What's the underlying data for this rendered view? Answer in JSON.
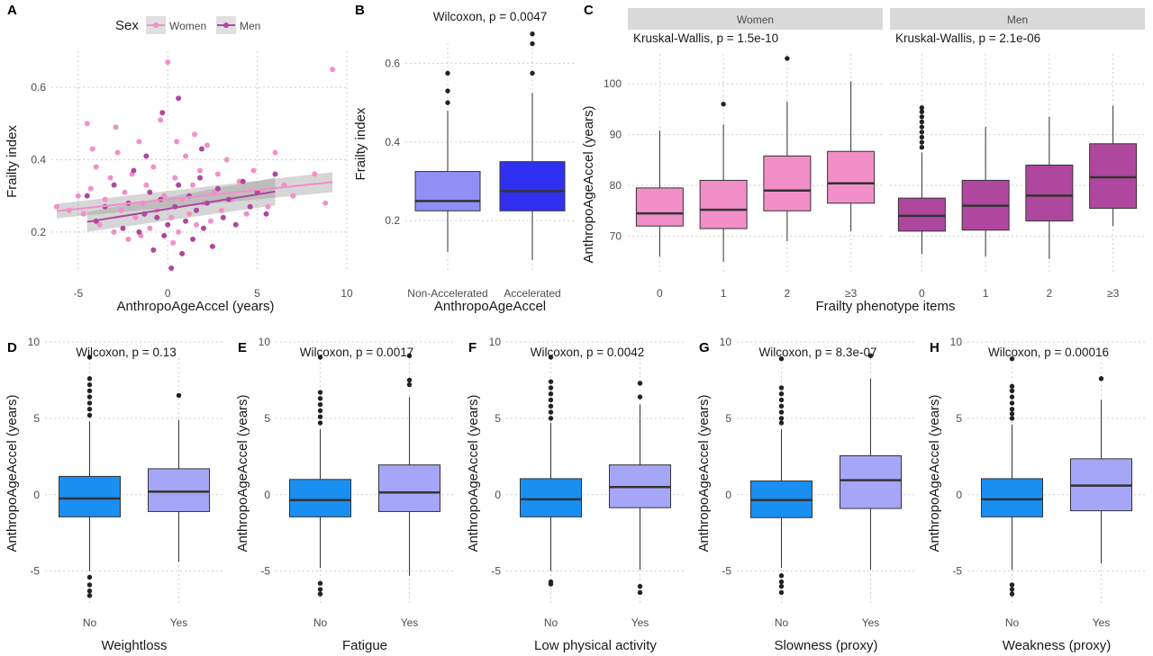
{
  "colors": {
    "women": "#f28fc8",
    "men": "#b0479e",
    "non_accelerated": "#8f8ff5",
    "accelerated": "#3030f0",
    "no": "#1a8ff2",
    "yes": "#a6a6f8",
    "strip_bg": "#d9d9d9"
  },
  "chart_data": [
    {
      "panel": "A",
      "type": "scatter",
      "xlabel": "AnthropoAgeAccel (years)",
      "ylabel": "Frailty index",
      "xlim": [
        -6.5,
        10
      ],
      "ylim": [
        0.09,
        0.7
      ],
      "x_ticks": [
        -5,
        0,
        5,
        10
      ],
      "y_ticks": [
        0.2,
        0.4,
        0.6
      ],
      "x_tick_labels": [
        "-5",
        "0",
        "5",
        "10"
      ],
      "y_tick_labels": [
        "0.2",
        "0.4",
        "0.6"
      ],
      "legend": {
        "title": "Sex",
        "position": "top",
        "items": [
          "Women",
          "Men"
        ]
      },
      "grid": true,
      "series": [
        {
          "name": "Women",
          "color_key": "women",
          "points": [
            [
              -6.2,
              0.27
            ],
            [
              -5.5,
              0.26
            ],
            [
              -5.0,
              0.3
            ],
            [
              -4.7,
              0.25
            ],
            [
              -4.5,
              0.5
            ],
            [
              -4.3,
              0.32
            ],
            [
              -4.0,
              0.38
            ],
            [
              -3.8,
              0.22
            ],
            [
              -3.5,
              0.29
            ],
            [
              -3.2,
              0.35
            ],
            [
              -3.0,
              0.2
            ],
            [
              -2.8,
              0.42
            ],
            [
              -2.6,
              0.26
            ],
            [
              -2.4,
              0.31
            ],
            [
              -2.2,
              0.18
            ],
            [
              -2.0,
              0.36
            ],
            [
              -1.8,
              0.24
            ],
            [
              -1.6,
              0.45
            ],
            [
              -1.4,
              0.28
            ],
            [
              -1.2,
              0.33
            ],
            [
              -1.0,
              0.21
            ],
            [
              -0.8,
              0.38
            ],
            [
              -0.6,
              0.26
            ],
            [
              -0.4,
              0.51
            ],
            [
              -0.2,
              0.3
            ],
            [
              0.0,
              0.67
            ],
            [
              0.2,
              0.24
            ],
            [
              0.4,
              0.35
            ],
            [
              0.6,
              0.2
            ],
            [
              0.8,
              0.29
            ],
            [
              1.0,
              0.41
            ],
            [
              1.2,
              0.25
            ],
            [
              1.4,
              0.33
            ],
            [
              1.6,
              0.22
            ],
            [
              1.8,
              0.37
            ],
            [
              2.0,
              0.28
            ],
            [
              2.2,
              0.44
            ],
            [
              2.4,
              0.23
            ],
            [
              2.6,
              0.31
            ],
            [
              2.8,
              0.36
            ],
            [
              3.0,
              0.26
            ],
            [
              3.3,
              0.4
            ],
            [
              3.6,
              0.29
            ],
            [
              4.0,
              0.34
            ],
            [
              4.4,
              0.25
            ],
            [
              4.8,
              0.37
            ],
            [
              5.2,
              0.31
            ],
            [
              5.6,
              0.27
            ],
            [
              6.0,
              0.42
            ],
            [
              6.5,
              0.33
            ],
            [
              7.0,
              0.3
            ],
            [
              8.2,
              0.36
            ],
            [
              8.8,
              0.28
            ],
            [
              9.2,
              0.65
            ],
            [
              -4.2,
              0.43
            ],
            [
              -2.9,
              0.49
            ],
            [
              0.5,
              0.45
            ],
            [
              1.5,
              0.47
            ],
            [
              -1.5,
              0.19
            ],
            [
              0.3,
              0.17
            ]
          ]
        },
        {
          "name": "Men",
          "color_key": "men",
          "points": [
            [
              -4.5,
              0.3
            ],
            [
              -4.0,
              0.23
            ],
            [
              -3.5,
              0.27
            ],
            [
              -3.0,
              0.33
            ],
            [
              -2.5,
              0.21
            ],
            [
              -2.2,
              0.28
            ],
            [
              -1.9,
              0.37
            ],
            [
              -1.6,
              0.2
            ],
            [
              -1.3,
              0.25
            ],
            [
              -1.0,
              0.31
            ],
            [
              -0.8,
              0.15
            ],
            [
              -0.6,
              0.24
            ],
            [
              -0.4,
              0.29
            ],
            [
              -0.2,
              0.19
            ],
            [
              0.0,
              0.22
            ],
            [
              0.2,
              0.1
            ],
            [
              0.4,
              0.27
            ],
            [
              0.6,
              0.33
            ],
            [
              0.8,
              0.14
            ],
            [
              1.0,
              0.23
            ],
            [
              1.2,
              0.3
            ],
            [
              1.4,
              0.18
            ],
            [
              1.6,
              0.26
            ],
            [
              1.8,
              0.35
            ],
            [
              2.0,
              0.21
            ],
            [
              2.2,
              0.28
            ],
            [
              2.5,
              0.16
            ],
            [
              2.8,
              0.32
            ],
            [
              3.1,
              0.24
            ],
            [
              3.4,
              0.29
            ],
            [
              3.8,
              0.22
            ],
            [
              4.2,
              0.34
            ],
            [
              4.6,
              0.27
            ],
            [
              5.0,
              0.31
            ],
            [
              5.5,
              0.25
            ],
            [
              6.0,
              0.36
            ],
            [
              -0.3,
              0.53
            ],
            [
              0.6,
              0.57
            ],
            [
              -1.2,
              0.41
            ],
            [
              1.9,
              0.43
            ]
          ]
        }
      ],
      "trend_lines": [
        {
          "name": "Women",
          "color_key": "women",
          "x": [
            -6.2,
            9.2
          ],
          "y": [
            0.258,
            0.338
          ]
        },
        {
          "name": "Men",
          "color_key": "men",
          "x": [
            -4.5,
            6.0
          ],
          "y": [
            0.228,
            0.312
          ]
        }
      ]
    },
    {
      "panel": "B",
      "type": "box",
      "annotation": "Wilcoxon, p = 0.0047",
      "xlabel": "AnthropoAgeAccel",
      "ylabel": "Frailty index",
      "ylim": [
        0.07,
        0.72
      ],
      "y_ticks": [
        0.2,
        0.4,
        0.6
      ],
      "y_tick_labels": [
        "0.2",
        "0.4",
        "0.6"
      ],
      "categories": [
        "Non-Accelerated",
        "Accelerated"
      ],
      "color_keys": [
        "non_accelerated",
        "accelerated"
      ],
      "boxes": [
        {
          "min": 0.12,
          "q1": 0.225,
          "median": 0.25,
          "q3": 0.325,
          "max": 0.48,
          "outliers": [
            0.5,
            0.53,
            0.575
          ]
        },
        {
          "min": 0.1,
          "q1": 0.225,
          "median": 0.275,
          "q3": 0.35,
          "max": 0.525,
          "outliers": [
            0.575,
            0.65,
            0.675
          ]
        }
      ]
    },
    {
      "panel": "C",
      "type": "box",
      "annotation_by_facet": [
        "Kruskal-Wallis, p = 1.5e-10",
        "Kruskal-Wallis, p = 2.1e-06"
      ],
      "facets": [
        "Women",
        "Men"
      ],
      "xlabel": "Frailty phenotype items",
      "ylabel": "AnthropoAgeAccel (years)",
      "ylim": [
        63,
        108
      ],
      "y_ticks": [
        70,
        80,
        90,
        100
      ],
      "y_tick_labels": [
        "70",
        "80",
        "90",
        "100"
      ],
      "categories": [
        "0",
        "1",
        "2",
        "≥3"
      ],
      "facet_color_keys": [
        "women",
        "men"
      ],
      "boxes_by_facet": [
        [
          {
            "min": 66,
            "q1": 72,
            "median": 74.5,
            "q3": 79.5,
            "max": 90.8,
            "outliers": []
          },
          {
            "min": 65,
            "q1": 71.5,
            "median": 75.2,
            "q3": 81,
            "max": 92,
            "outliers": [
              96
            ]
          },
          {
            "min": 69,
            "q1": 75,
            "median": 79,
            "q3": 85.8,
            "max": 96.5,
            "outliers": [
              105
            ]
          },
          {
            "min": 71,
            "q1": 76.5,
            "median": 80.4,
            "q3": 86.7,
            "max": 100.5,
            "outliers": []
          }
        ],
        [
          {
            "min": 66.5,
            "q1": 71,
            "median": 74,
            "q3": 77.5,
            "max": 86.5,
            "outliers": [
              87.5,
              88.5,
              89.5,
              90.5,
              91.5,
              92.5,
              93.5,
              94.5,
              95.3
            ]
          },
          {
            "min": 66,
            "q1": 71.2,
            "median": 76,
            "q3": 81,
            "max": 91.5,
            "outliers": []
          },
          {
            "min": 65.5,
            "q1": 73,
            "median": 78,
            "q3": 84,
            "max": 93.5,
            "outliers": []
          },
          {
            "min": 72,
            "q1": 75.5,
            "median": 81.6,
            "q3": 88.2,
            "max": 95.7,
            "outliers": []
          }
        ]
      ]
    },
    {
      "panel": "D",
      "type": "box",
      "annotation": "Wilcoxon, p = 0.13",
      "xlabel": "Weightloss",
      "ylabel": "AnthropoAgeAccel (years)",
      "ylim": [
        -7.2,
        10
      ],
      "y_ticks": [
        -5,
        0,
        5,
        10
      ],
      "y_tick_labels": [
        "-5",
        "0",
        "5",
        "10"
      ],
      "categories": [
        "No",
        "Yes"
      ],
      "color_keys": [
        "no",
        "yes"
      ],
      "boxes": [
        {
          "min": -5,
          "q1": -1.45,
          "median": -0.25,
          "q3": 1.2,
          "max": 4.8,
          "outliers": [
            5.2,
            5.6,
            6.0,
            6.4,
            6.8,
            7.2,
            7.6,
            9.0,
            -5.4,
            -5.9,
            -6.3,
            -6.6
          ]
        },
        {
          "min": -4.4,
          "q1": -1.1,
          "median": 0.2,
          "q3": 1.7,
          "max": 4.9,
          "outliers": [
            6.5
          ]
        }
      ]
    },
    {
      "panel": "E",
      "type": "box",
      "annotation": "Wilcoxon, p = 0.0017",
      "xlabel": "Fatigue",
      "ylabel": "AnthropoAgeAccel (years)",
      "ylim": [
        -7.2,
        10
      ],
      "y_ticks": [
        -5,
        0,
        5,
        10
      ],
      "y_tick_labels": [
        "-5",
        "0",
        "5",
        "10"
      ],
      "categories": [
        "No",
        "Yes"
      ],
      "color_keys": [
        "no",
        "yes"
      ],
      "boxes": [
        {
          "min": -4.8,
          "q1": -1.45,
          "median": -0.35,
          "q3": 1.0,
          "max": 4.3,
          "outliers": [
            4.7,
            5.1,
            5.5,
            5.9,
            6.3,
            6.7,
            9.0,
            -5.8,
            -6.2,
            -6.5
          ]
        },
        {
          "min": -5.3,
          "q1": -1.1,
          "median": 0.15,
          "q3": 1.95,
          "max": 6.4,
          "outliers": [
            7.2,
            7.5,
            9.1
          ]
        }
      ]
    },
    {
      "panel": "F",
      "type": "box",
      "annotation": "Wilcoxon, p = 0.0042",
      "xlabel": "Low physical activity",
      "ylabel": "AnthropoAgeAccel (years)",
      "ylim": [
        -7.2,
        10
      ],
      "y_ticks": [
        -5,
        0,
        5,
        10
      ],
      "y_tick_labels": [
        "-5",
        "0",
        "5",
        "10"
      ],
      "categories": [
        "No",
        "Yes"
      ],
      "color_keys": [
        "no",
        "yes"
      ],
      "boxes": [
        {
          "min": -5.0,
          "q1": -1.45,
          "median": -0.3,
          "q3": 1.05,
          "max": 4.7,
          "outliers": [
            5.0,
            5.4,
            5.8,
            6.2,
            6.6,
            7.0,
            7.4,
            9.0,
            -5.7,
            -5.85
          ]
        },
        {
          "min": -4.9,
          "q1": -0.85,
          "median": 0.5,
          "q3": 1.95,
          "max": 5.9,
          "outliers": [
            6.4,
            7.3,
            -6.0,
            -6.4
          ]
        }
      ]
    },
    {
      "panel": "G",
      "type": "box",
      "annotation": "Wilcoxon, p = 8.3e-07",
      "xlabel": "Slowness (proxy)",
      "ylabel": "AnthropoAgeAccel (years)",
      "ylim": [
        -7.2,
        10
      ],
      "y_ticks": [
        -5,
        0,
        5,
        10
      ],
      "y_tick_labels": [
        "-5",
        "0",
        "5",
        "10"
      ],
      "categories": [
        "No",
        "Yes"
      ],
      "color_keys": [
        "no",
        "yes"
      ],
      "boxes": [
        {
          "min": -4.8,
          "q1": -1.5,
          "median": -0.35,
          "q3": 0.9,
          "max": 4.3,
          "outliers": [
            4.7,
            5.0,
            5.4,
            5.8,
            6.2,
            6.6,
            7.0,
            8.9,
            -5.3,
            -5.7,
            -6.0,
            -6.4
          ]
        },
        {
          "min": -4.9,
          "q1": -0.9,
          "median": 0.95,
          "q3": 2.55,
          "max": 7.6,
          "outliers": [
            9.1
          ]
        }
      ]
    },
    {
      "panel": "H",
      "type": "box",
      "annotation": "Wilcoxon, p = 0.00016",
      "xlabel": "Weakness (proxy)",
      "ylabel": "AnthropoAgeAccel (years)",
      "ylim": [
        -7.2,
        10
      ],
      "y_ticks": [
        -5,
        0,
        5,
        10
      ],
      "y_tick_labels": [
        "-5",
        "0",
        "5",
        "10"
      ],
      "categories": [
        "No",
        "Yes"
      ],
      "color_keys": [
        "no",
        "yes"
      ],
      "boxes": [
        {
          "min": -4.9,
          "q1": -1.45,
          "median": -0.3,
          "q3": 1.05,
          "max": 4.6,
          "outliers": [
            5.0,
            5.3,
            5.6,
            6.0,
            6.4,
            6.8,
            7.1,
            8.9,
            -5.9,
            -6.2,
            -6.5
          ]
        },
        {
          "min": -4.5,
          "q1": -1.05,
          "median": 0.6,
          "q3": 2.35,
          "max": 6.2,
          "outliers": [
            7.6
          ]
        }
      ]
    }
  ]
}
